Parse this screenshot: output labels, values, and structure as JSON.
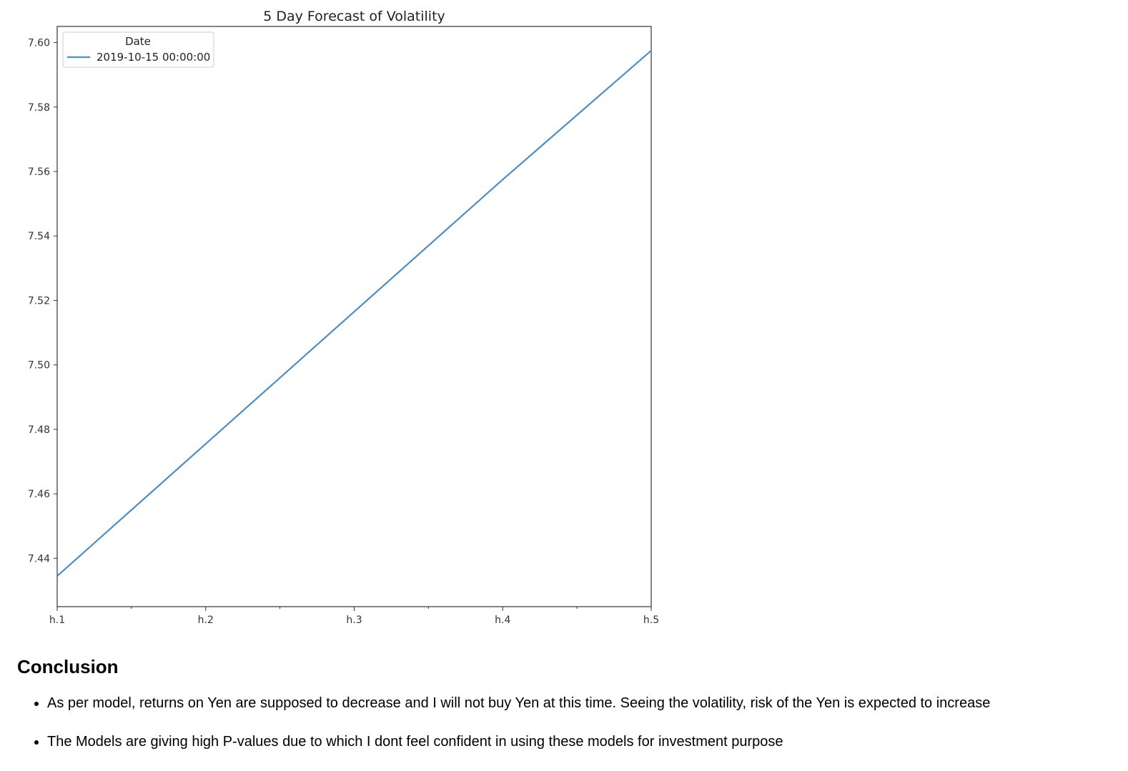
{
  "chart_data": {
    "type": "line",
    "title": "5 Day Forecast of Volatility",
    "xlabel": "",
    "ylabel": "",
    "categories": [
      "h.1",
      "h.2",
      "h.3",
      "h.4",
      "h.5"
    ],
    "series": [
      {
        "name": "2019-10-15 00:00:00",
        "values": [
          7.4345,
          7.4755,
          7.5165,
          7.5575,
          7.5975
        ],
        "color": "#4c8fc4"
      }
    ],
    "ylim": [
      7.425,
      7.605
    ],
    "yticks": [
      7.44,
      7.46,
      7.48,
      7.5,
      7.52,
      7.54,
      7.56,
      7.58,
      7.6
    ],
    "ytick_labels": [
      "7.44",
      "7.46",
      "7.48",
      "7.50",
      "7.52",
      "7.54",
      "7.56",
      "7.58",
      "7.60"
    ],
    "legend": {
      "title": "Date",
      "placement": "upper-left"
    },
    "grid": false
  },
  "conclusion": {
    "heading": "Conclusion",
    "bullets": [
      "As per model, returns on Yen are supposed to decrease and I will not buy Yen at this time. Seeing the volatility, risk of the Yen is expected to increase",
      "The Models are giving high P-values due to which I dont feel confident in using these models for investment purpose"
    ]
  }
}
